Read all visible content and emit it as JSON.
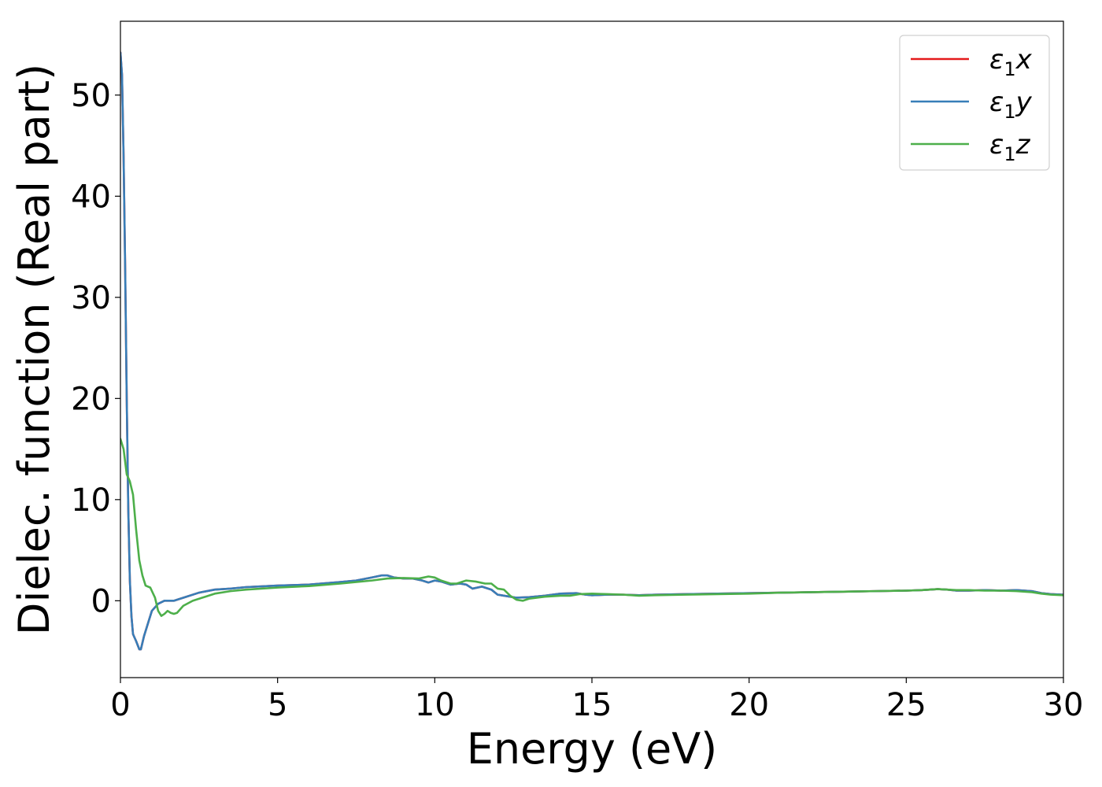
{
  "chart_data": {
    "type": "line",
    "xlabel": "Energy (eV)",
    "ylabel": "Dielec. function (Real part)",
    "xlim": [
      0,
      30
    ],
    "ylim": [
      -7.6,
      57.3
    ],
    "xticks": [
      0,
      5,
      10,
      15,
      20,
      25,
      30
    ],
    "yticks": [
      0,
      10,
      20,
      30,
      40,
      50
    ],
    "grid": false,
    "legend_position": "top-right",
    "series": [
      {
        "key": "x",
        "name": "ε₁x",
        "legend": {
          "base": "ε",
          "sub": "1",
          "suffix": "x"
        },
        "color": "#e41a1c",
        "points": [
          [
            0.0,
            54.2
          ],
          [
            0.05,
            52.0
          ],
          [
            0.1,
            44.0
          ],
          [
            0.15,
            33.0
          ],
          [
            0.2,
            20.0
          ],
          [
            0.25,
            9.0
          ],
          [
            0.3,
            2.0
          ],
          [
            0.35,
            -1.5
          ],
          [
            0.4,
            -3.3
          ],
          [
            0.5,
            -4.0
          ],
          [
            0.6,
            -4.8
          ],
          [
            0.65,
            -4.8
          ],
          [
            0.75,
            -3.5
          ],
          [
            0.9,
            -2.0
          ],
          [
            1.0,
            -1.0
          ],
          [
            1.2,
            -0.3
          ],
          [
            1.4,
            0.0
          ],
          [
            1.7,
            0.0
          ],
          [
            2.0,
            0.3
          ],
          [
            2.5,
            0.8
          ],
          [
            3.0,
            1.1
          ],
          [
            3.5,
            1.2
          ],
          [
            4.0,
            1.35
          ],
          [
            5.0,
            1.5
          ],
          [
            6.0,
            1.6
          ],
          [
            7.0,
            1.85
          ],
          [
            7.5,
            2.0
          ],
          [
            8.0,
            2.3
          ],
          [
            8.3,
            2.5
          ],
          [
            8.5,
            2.5
          ],
          [
            8.7,
            2.3
          ],
          [
            9.0,
            2.2
          ],
          [
            9.3,
            2.2
          ],
          [
            9.6,
            2.0
          ],
          [
            9.8,
            1.8
          ],
          [
            10.0,
            2.0
          ],
          [
            10.2,
            1.9
          ],
          [
            10.5,
            1.6
          ],
          [
            10.8,
            1.7
          ],
          [
            11.0,
            1.6
          ],
          [
            11.2,
            1.2
          ],
          [
            11.5,
            1.4
          ],
          [
            11.8,
            1.1
          ],
          [
            12.0,
            0.6
          ],
          [
            12.3,
            0.45
          ],
          [
            12.6,
            0.3
          ],
          [
            13.0,
            0.35
          ],
          [
            13.5,
            0.5
          ],
          [
            14.0,
            0.7
          ],
          [
            14.5,
            0.75
          ],
          [
            14.8,
            0.6
          ],
          [
            15.0,
            0.55
          ],
          [
            15.5,
            0.6
          ],
          [
            16.0,
            0.6
          ],
          [
            16.5,
            0.55
          ],
          [
            17.0,
            0.6
          ],
          [
            18.0,
            0.65
          ],
          [
            19.0,
            0.7
          ],
          [
            20.0,
            0.75
          ],
          [
            21.0,
            0.8
          ],
          [
            22.0,
            0.85
          ],
          [
            23.0,
            0.9
          ],
          [
            24.0,
            0.95
          ],
          [
            25.0,
            1.0
          ],
          [
            25.5,
            1.05
          ],
          [
            26.0,
            1.15
          ],
          [
            26.3,
            1.1
          ],
          [
            26.6,
            1.0
          ],
          [
            27.0,
            1.0
          ],
          [
            27.5,
            1.05
          ],
          [
            28.0,
            1.0
          ],
          [
            28.5,
            1.05
          ],
          [
            29.0,
            0.95
          ],
          [
            29.3,
            0.75
          ],
          [
            29.6,
            0.65
          ],
          [
            30.0,
            0.6
          ]
        ]
      },
      {
        "key": "y",
        "name": "ε₁y",
        "legend": {
          "base": "ε",
          "sub": "1",
          "suffix": "y"
        },
        "color": "#377eb8",
        "points": [
          [
            0.0,
            54.2
          ],
          [
            0.05,
            52.0
          ],
          [
            0.1,
            44.0
          ],
          [
            0.15,
            33.0
          ],
          [
            0.2,
            20.0
          ],
          [
            0.25,
            9.0
          ],
          [
            0.3,
            2.0
          ],
          [
            0.35,
            -1.5
          ],
          [
            0.4,
            -3.3
          ],
          [
            0.5,
            -4.0
          ],
          [
            0.6,
            -4.8
          ],
          [
            0.65,
            -4.8
          ],
          [
            0.75,
            -3.5
          ],
          [
            0.9,
            -2.0
          ],
          [
            1.0,
            -1.0
          ],
          [
            1.2,
            -0.3
          ],
          [
            1.4,
            0.0
          ],
          [
            1.7,
            0.0
          ],
          [
            2.0,
            0.3
          ],
          [
            2.5,
            0.8
          ],
          [
            3.0,
            1.1
          ],
          [
            3.5,
            1.2
          ],
          [
            4.0,
            1.35
          ],
          [
            5.0,
            1.5
          ],
          [
            6.0,
            1.6
          ],
          [
            7.0,
            1.85
          ],
          [
            7.5,
            2.0
          ],
          [
            8.0,
            2.3
          ],
          [
            8.3,
            2.5
          ],
          [
            8.5,
            2.5
          ],
          [
            8.7,
            2.3
          ],
          [
            9.0,
            2.2
          ],
          [
            9.3,
            2.2
          ],
          [
            9.6,
            2.0
          ],
          [
            9.8,
            1.8
          ],
          [
            10.0,
            2.0
          ],
          [
            10.2,
            1.9
          ],
          [
            10.5,
            1.6
          ],
          [
            10.8,
            1.7
          ],
          [
            11.0,
            1.6
          ],
          [
            11.2,
            1.2
          ],
          [
            11.5,
            1.4
          ],
          [
            11.8,
            1.1
          ],
          [
            12.0,
            0.6
          ],
          [
            12.3,
            0.45
          ],
          [
            12.6,
            0.3
          ],
          [
            13.0,
            0.35
          ],
          [
            13.5,
            0.5
          ],
          [
            14.0,
            0.7
          ],
          [
            14.5,
            0.75
          ],
          [
            14.8,
            0.6
          ],
          [
            15.0,
            0.55
          ],
          [
            15.5,
            0.6
          ],
          [
            16.0,
            0.6
          ],
          [
            16.5,
            0.55
          ],
          [
            17.0,
            0.6
          ],
          [
            18.0,
            0.65
          ],
          [
            19.0,
            0.7
          ],
          [
            20.0,
            0.75
          ],
          [
            21.0,
            0.8
          ],
          [
            22.0,
            0.85
          ],
          [
            23.0,
            0.9
          ],
          [
            24.0,
            0.95
          ],
          [
            25.0,
            1.0
          ],
          [
            25.5,
            1.05
          ],
          [
            26.0,
            1.15
          ],
          [
            26.3,
            1.1
          ],
          [
            26.6,
            1.0
          ],
          [
            27.0,
            1.0
          ],
          [
            27.5,
            1.05
          ],
          [
            28.0,
            1.0
          ],
          [
            28.5,
            1.05
          ],
          [
            29.0,
            0.95
          ],
          [
            29.3,
            0.75
          ],
          [
            29.6,
            0.65
          ],
          [
            30.0,
            0.6
          ]
        ]
      },
      {
        "key": "z",
        "name": "ε₁z",
        "legend": {
          "base": "ε",
          "sub": "1",
          "suffix": "z"
        },
        "color": "#4daf4a",
        "points": [
          [
            0.0,
            16.0
          ],
          [
            0.1,
            15.0
          ],
          [
            0.2,
            12.5
          ],
          [
            0.3,
            11.8
          ],
          [
            0.4,
            10.5
          ],
          [
            0.5,
            7.0
          ],
          [
            0.6,
            4.0
          ],
          [
            0.7,
            2.5
          ],
          [
            0.8,
            1.5
          ],
          [
            0.95,
            1.3
          ],
          [
            1.1,
            0.3
          ],
          [
            1.2,
            -1.0
          ],
          [
            1.3,
            -1.5
          ],
          [
            1.4,
            -1.3
          ],
          [
            1.5,
            -1.0
          ],
          [
            1.6,
            -1.2
          ],
          [
            1.7,
            -1.3
          ],
          [
            1.8,
            -1.2
          ],
          [
            2.0,
            -0.5
          ],
          [
            2.3,
            0.0
          ],
          [
            2.7,
            0.4
          ],
          [
            3.0,
            0.7
          ],
          [
            3.5,
            0.95
          ],
          [
            4.0,
            1.1
          ],
          [
            5.0,
            1.3
          ],
          [
            6.0,
            1.45
          ],
          [
            7.0,
            1.7
          ],
          [
            8.0,
            2.0
          ],
          [
            8.5,
            2.2
          ],
          [
            9.0,
            2.25
          ],
          [
            9.5,
            2.2
          ],
          [
            9.8,
            2.4
          ],
          [
            10.0,
            2.3
          ],
          [
            10.2,
            2.0
          ],
          [
            10.5,
            1.7
          ],
          [
            10.7,
            1.7
          ],
          [
            11.0,
            2.0
          ],
          [
            11.3,
            1.9
          ],
          [
            11.6,
            1.7
          ],
          [
            11.8,
            1.7
          ],
          [
            12.0,
            1.2
          ],
          [
            12.2,
            1.1
          ],
          [
            12.4,
            0.5
          ],
          [
            12.6,
            0.1
          ],
          [
            12.8,
            0.0
          ],
          [
            13.0,
            0.2
          ],
          [
            13.5,
            0.4
          ],
          [
            14.0,
            0.5
          ],
          [
            14.3,
            0.5
          ],
          [
            14.6,
            0.65
          ],
          [
            15.0,
            0.7
          ],
          [
            15.5,
            0.65
          ],
          [
            16.0,
            0.6
          ],
          [
            16.5,
            0.5
          ],
          [
            17.0,
            0.55
          ],
          [
            18.0,
            0.6
          ],
          [
            19.0,
            0.65
          ],
          [
            20.0,
            0.7
          ],
          [
            21.0,
            0.8
          ],
          [
            22.0,
            0.85
          ],
          [
            23.0,
            0.9
          ],
          [
            24.0,
            0.95
          ],
          [
            25.0,
            1.0
          ],
          [
            25.5,
            1.05
          ],
          [
            26.0,
            1.15
          ],
          [
            26.3,
            1.1
          ],
          [
            26.6,
            1.05
          ],
          [
            27.0,
            1.05
          ],
          [
            27.5,
            1.0
          ],
          [
            28.0,
            1.0
          ],
          [
            28.5,
            0.95
          ],
          [
            29.0,
            0.85
          ],
          [
            29.3,
            0.7
          ],
          [
            29.6,
            0.6
          ],
          [
            30.0,
            0.55
          ]
        ]
      }
    ]
  }
}
